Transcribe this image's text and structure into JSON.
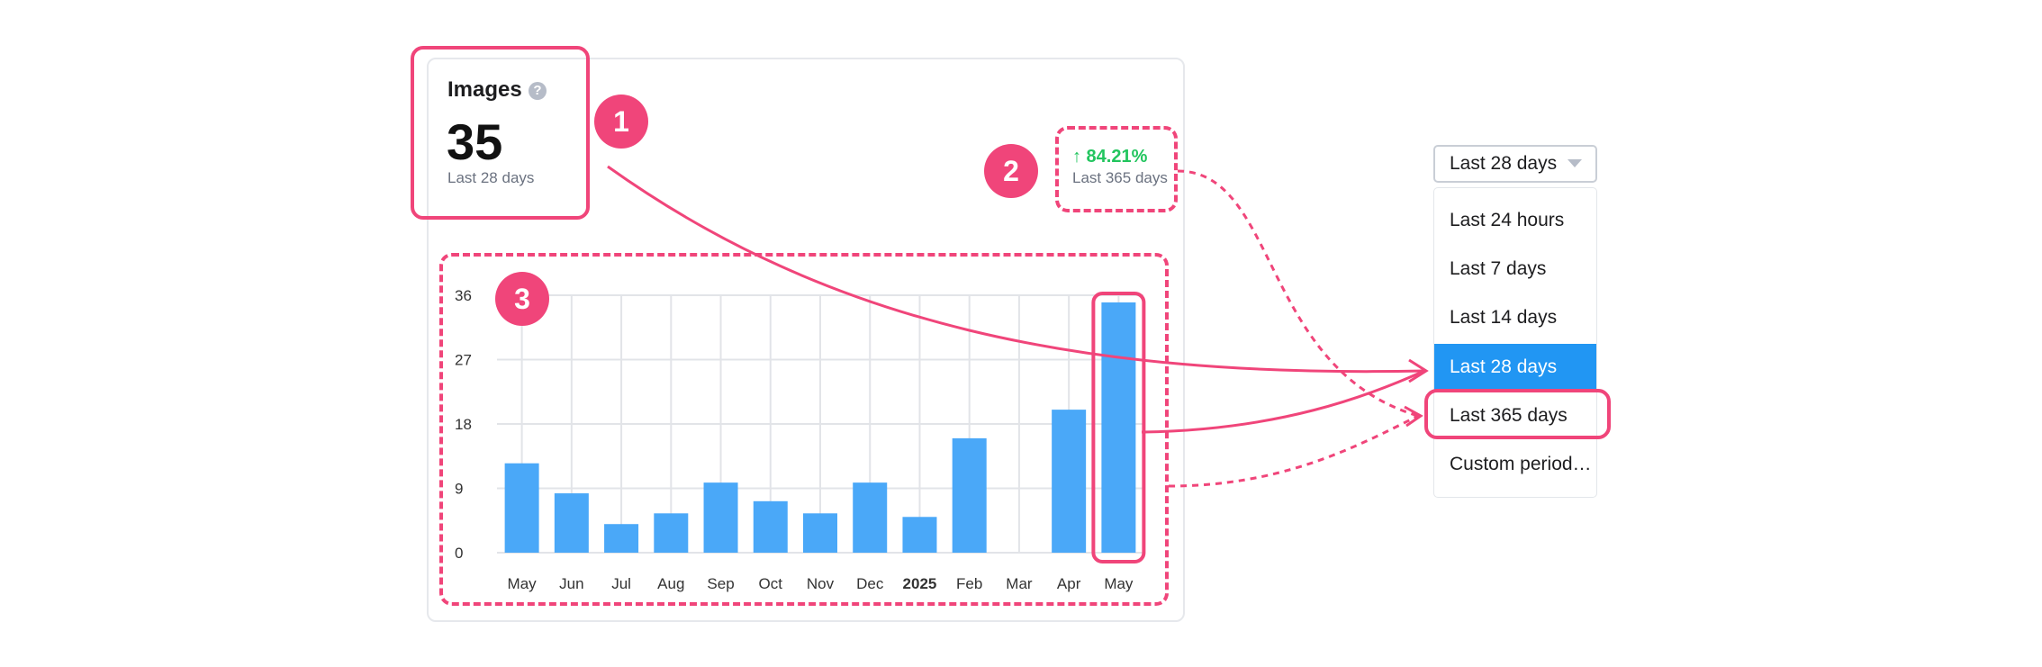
{
  "stat": {
    "title": "Images",
    "help_icon": "question-mark-icon",
    "value": "35",
    "period": "Last 28 days"
  },
  "delta": {
    "value": "↑ 84.21%",
    "period": "Last 365 days",
    "color": "#22c55e"
  },
  "badges": [
    "1",
    "2",
    "3"
  ],
  "dropdown": {
    "selected_label": "Last 28 days",
    "options": [
      "Last 24 hours",
      "Last 7 days",
      "Last 14 days",
      "Last 28 days",
      "Last 365 days",
      "Custom period…"
    ],
    "selected_index": 3,
    "highlighted_index": 4,
    "selected_color": "#2196f3"
  },
  "colors": {
    "accent": "#f0457a",
    "bar": "#4aa8f8"
  },
  "chart_data": {
    "type": "bar",
    "categories": [
      "May",
      "Jun",
      "Jul",
      "Aug",
      "Sep",
      "Oct",
      "Nov",
      "Dec",
      "2025",
      "Feb",
      "Mar",
      "Apr",
      "May"
    ],
    "values": [
      12.5,
      8.3,
      4,
      5.5,
      9.8,
      7.2,
      5.5,
      9.8,
      5,
      16,
      0,
      20,
      35
    ],
    "yticks": [
      0,
      9,
      18,
      27,
      36
    ],
    "ylim": [
      0,
      36
    ],
    "grid": true,
    "bold_categories": [
      "2025"
    ],
    "highlighted_index": 12
  }
}
